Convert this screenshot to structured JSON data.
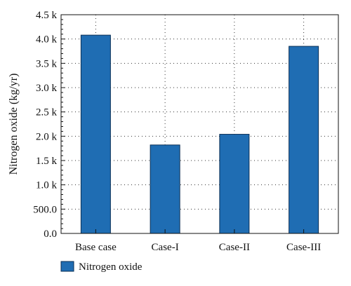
{
  "chart_data": {
    "type": "bar",
    "categories": [
      "Base case",
      "Case-I",
      "Case-II",
      "Case-III"
    ],
    "series": [
      {
        "name": "Nitrogen oxide",
        "values": [
          4080,
          1820,
          2040,
          3850
        ]
      }
    ],
    "ylabel": "Nitrogen oxide (kg/yr)",
    "xlabel": "",
    "ylim": [
      0,
      4500
    ],
    "y_ticks": [
      0,
      500,
      1000,
      1500,
      2000,
      2500,
      3000,
      3500,
      4000,
      4500
    ],
    "y_tick_labels": [
      "0.0",
      "500.0",
      "1.0 k",
      "1.5 k",
      "2.0 k",
      "2.5 k",
      "3.0 k",
      "3.5 k",
      "4.0 k",
      "4.5 k"
    ],
    "grid": "dotted",
    "legend_position": "bottom-left",
    "colors": {
      "bar_fill": "#1f6db3",
      "bar_stroke": "#0a2f55"
    }
  }
}
